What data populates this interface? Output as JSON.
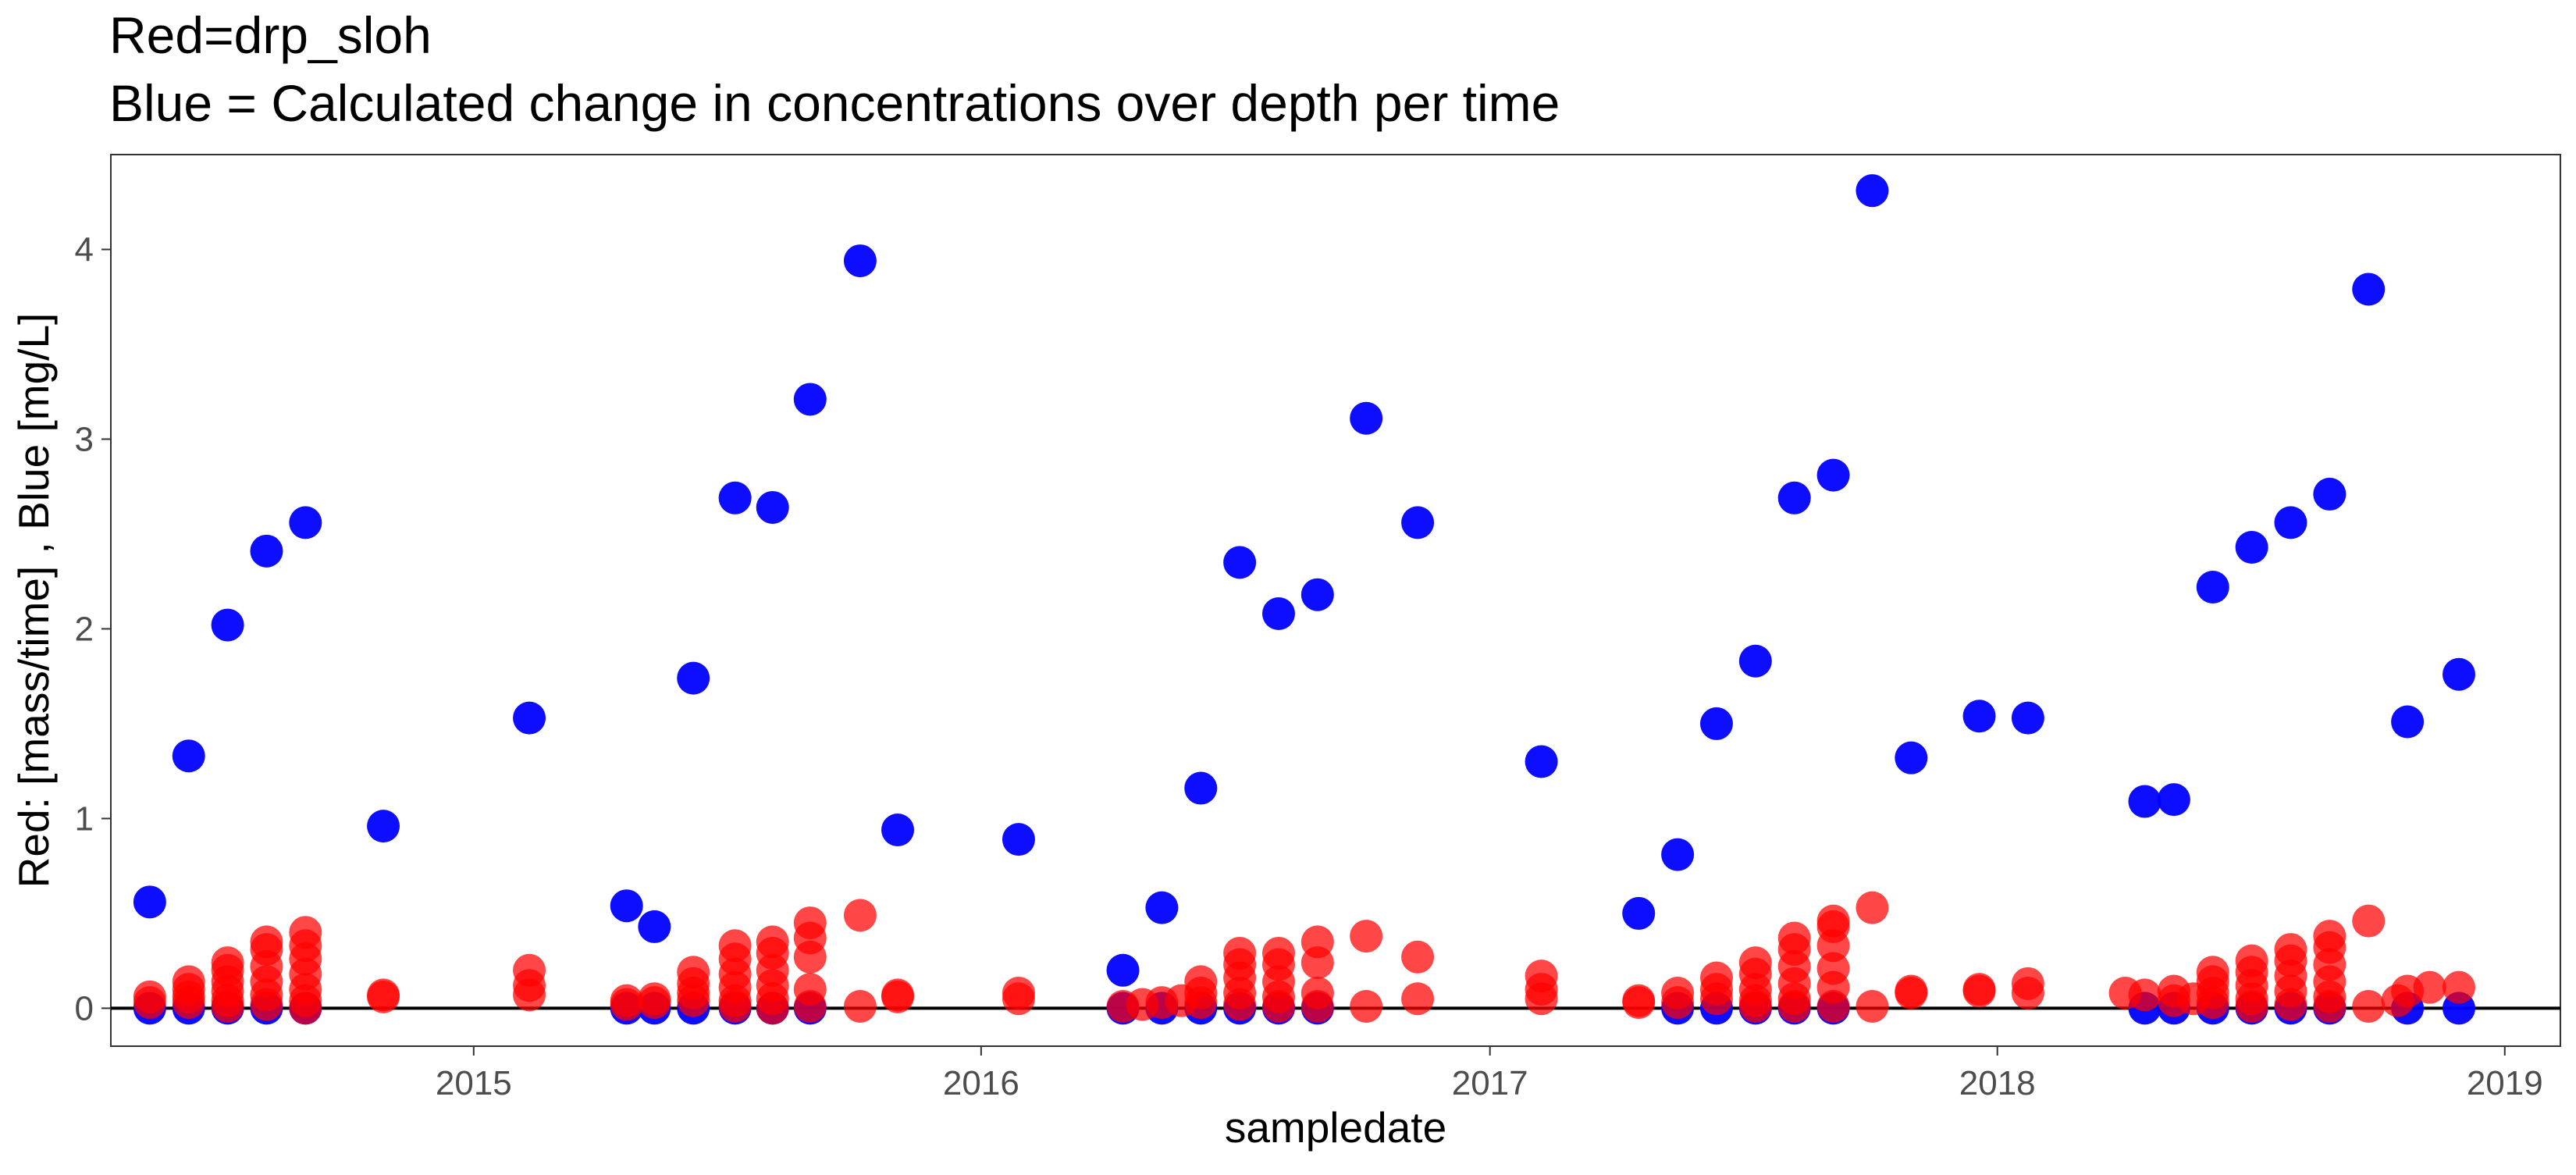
{
  "chart_data": {
    "type": "scatter",
    "title": "Red=drp_sloh",
    "subtitle": "Blue = Calculated change in concentrations over depth per time",
    "xlabel": "sampledate",
    "ylabel": "Red: [mass/time] , Blue [mg/L]",
    "x_ticks": [
      "2015-01-01",
      "2016-01-01",
      "2017-01-01",
      "2018-01-01",
      "2019-01-01"
    ],
    "x_tick_labels": [
      "2015",
      "2016",
      "2017",
      "2018",
      "2019"
    ],
    "y_ticks": [
      0,
      1,
      2,
      3,
      4
    ],
    "y_tick_labels": [
      "0",
      "1",
      "2",
      "3",
      "4"
    ],
    "xlim": [
      "2014-04-15",
      "2019-02-10"
    ],
    "ylim": [
      -0.2,
      4.5
    ],
    "hline_y": 0,
    "grid": false,
    "series": [
      {
        "color": "#0000ff",
        "points": [
          {
            "x": "2014-05-13",
            "y": 0.56
          },
          {
            "x": "2014-06-10",
            "y": 1.33
          },
          {
            "x": "2014-07-08",
            "y": 2.02
          },
          {
            "x": "2014-08-05",
            "y": 2.41
          },
          {
            "x": "2014-09-02",
            "y": 2.56
          },
          {
            "x": "2014-10-28",
            "y": 0.96
          },
          {
            "x": "2015-02-10",
            "y": 1.53
          },
          {
            "x": "2015-04-21",
            "y": 0.54
          },
          {
            "x": "2015-05-11",
            "y": 0.43
          },
          {
            "x": "2015-06-08",
            "y": 1.74
          },
          {
            "x": "2015-07-08",
            "y": 2.69
          },
          {
            "x": "2015-08-04",
            "y": 2.64
          },
          {
            "x": "2015-08-31",
            "y": 3.21
          },
          {
            "x": "2015-10-06",
            "y": 3.94
          },
          {
            "x": "2015-11-02",
            "y": 0.94
          },
          {
            "x": "2016-01-28",
            "y": 0.89
          },
          {
            "x": "2016-04-12",
            "y": 0.2
          },
          {
            "x": "2016-05-10",
            "y": 0.53
          },
          {
            "x": "2016-06-07",
            "y": 1.16
          },
          {
            "x": "2016-07-05",
            "y": 2.35
          },
          {
            "x": "2016-08-02",
            "y": 2.08
          },
          {
            "x": "2016-08-30",
            "y": 2.18
          },
          {
            "x": "2016-10-04",
            "y": 3.11
          },
          {
            "x": "2016-11-10",
            "y": 2.56
          },
          {
            "x": "2017-02-07",
            "y": 1.3
          },
          {
            "x": "2017-04-18",
            "y": 0.5
          },
          {
            "x": "2017-05-16",
            "y": 0.81
          },
          {
            "x": "2017-06-13",
            "y": 1.5
          },
          {
            "x": "2017-07-11",
            "y": 1.83
          },
          {
            "x": "2017-08-08",
            "y": 2.69
          },
          {
            "x": "2017-09-05",
            "y": 2.81
          },
          {
            "x": "2017-10-03",
            "y": 4.31
          },
          {
            "x": "2017-10-31",
            "y": 1.32
          },
          {
            "x": "2017-12-19",
            "y": 1.54
          },
          {
            "x": "2018-01-23",
            "y": 1.53
          },
          {
            "x": "2018-04-17",
            "y": 1.09
          },
          {
            "x": "2018-05-08",
            "y": 1.1
          },
          {
            "x": "2018-06-05",
            "y": 2.22
          },
          {
            "x": "2018-07-03",
            "y": 2.43
          },
          {
            "x": "2018-07-31",
            "y": 2.56
          },
          {
            "x": "2018-08-28",
            "y": 2.71
          },
          {
            "x": "2018-09-25",
            "y": 3.79
          },
          {
            "x": "2018-10-23",
            "y": 1.51
          },
          {
            "x": "2018-11-29",
            "y": 1.76
          },
          {
            "x": "2014-05-13",
            "y": 0.0
          },
          {
            "x": "2014-06-10",
            "y": 0.0
          },
          {
            "x": "2014-07-08",
            "y": 0.0
          },
          {
            "x": "2014-08-05",
            "y": 0.0
          },
          {
            "x": "2014-09-02",
            "y": 0.0
          },
          {
            "x": "2015-04-21",
            "y": 0.0
          },
          {
            "x": "2015-05-11",
            "y": 0.0
          },
          {
            "x": "2015-06-08",
            "y": 0.0
          },
          {
            "x": "2015-07-08",
            "y": 0.0
          },
          {
            "x": "2015-08-04",
            "y": 0.0
          },
          {
            "x": "2015-08-31",
            "y": 0.0
          },
          {
            "x": "2016-04-12",
            "y": 0.0
          },
          {
            "x": "2016-05-10",
            "y": 0.0
          },
          {
            "x": "2016-06-07",
            "y": 0.0
          },
          {
            "x": "2016-07-05",
            "y": 0.0
          },
          {
            "x": "2016-08-02",
            "y": 0.0
          },
          {
            "x": "2016-08-30",
            "y": 0.0
          },
          {
            "x": "2017-05-16",
            "y": 0.0
          },
          {
            "x": "2017-06-13",
            "y": 0.0
          },
          {
            "x": "2017-07-11",
            "y": 0.0
          },
          {
            "x": "2017-08-08",
            "y": 0.0
          },
          {
            "x": "2017-09-05",
            "y": 0.0
          },
          {
            "x": "2018-04-17",
            "y": 0.0
          },
          {
            "x": "2018-05-08",
            "y": 0.0
          },
          {
            "x": "2018-06-05",
            "y": 0.0
          },
          {
            "x": "2018-07-03",
            "y": 0.0
          },
          {
            "x": "2018-07-31",
            "y": 0.0
          },
          {
            "x": "2018-08-28",
            "y": 0.0
          },
          {
            "x": "2018-10-23",
            "y": 0.0
          },
          {
            "x": "2018-11-29",
            "y": 0.0
          }
        ]
      },
      {
        "color": "#ff0000",
        "points": [
          {
            "x": "2014-05-13",
            "y": 0.06
          },
          {
            "x": "2014-05-13",
            "y": 0.03
          },
          {
            "x": "2014-06-10",
            "y": 0.14
          },
          {
            "x": "2014-06-10",
            "y": 0.1
          },
          {
            "x": "2014-06-10",
            "y": 0.06
          },
          {
            "x": "2014-06-10",
            "y": 0.03
          },
          {
            "x": "2014-07-08",
            "y": 0.24
          },
          {
            "x": "2014-07-08",
            "y": 0.2
          },
          {
            "x": "2014-07-08",
            "y": 0.14
          },
          {
            "x": "2014-07-08",
            "y": 0.09
          },
          {
            "x": "2014-07-08",
            "y": 0.04
          },
          {
            "x": "2014-07-08",
            "y": 0.01
          },
          {
            "x": "2014-08-05",
            "y": 0.35
          },
          {
            "x": "2014-08-05",
            "y": 0.31
          },
          {
            "x": "2014-08-05",
            "y": 0.22
          },
          {
            "x": "2014-08-05",
            "y": 0.14
          },
          {
            "x": "2014-08-05",
            "y": 0.07
          },
          {
            "x": "2014-08-05",
            "y": 0.02
          },
          {
            "x": "2014-09-02",
            "y": 0.4
          },
          {
            "x": "2014-09-02",
            "y": 0.33
          },
          {
            "x": "2014-09-02",
            "y": 0.26
          },
          {
            "x": "2014-09-02",
            "y": 0.18
          },
          {
            "x": "2014-09-02",
            "y": 0.1
          },
          {
            "x": "2014-09-02",
            "y": 0.04
          },
          {
            "x": "2014-09-02",
            "y": 0.0
          },
          {
            "x": "2014-10-28",
            "y": 0.07
          },
          {
            "x": "2014-10-28",
            "y": 0.06
          },
          {
            "x": "2015-02-10",
            "y": 0.2
          },
          {
            "x": "2015-02-10",
            "y": 0.12
          },
          {
            "x": "2015-02-10",
            "y": 0.07
          },
          {
            "x": "2015-04-21",
            "y": 0.04
          },
          {
            "x": "2015-04-21",
            "y": 0.02
          },
          {
            "x": "2015-05-11",
            "y": 0.05
          },
          {
            "x": "2015-05-11",
            "y": 0.03
          },
          {
            "x": "2015-06-08",
            "y": 0.19
          },
          {
            "x": "2015-06-08",
            "y": 0.13
          },
          {
            "x": "2015-06-08",
            "y": 0.08
          },
          {
            "x": "2015-06-08",
            "y": 0.04
          },
          {
            "x": "2015-07-08",
            "y": 0.33
          },
          {
            "x": "2015-07-08",
            "y": 0.26
          },
          {
            "x": "2015-07-08",
            "y": 0.18
          },
          {
            "x": "2015-07-08",
            "y": 0.11
          },
          {
            "x": "2015-07-08",
            "y": 0.04
          },
          {
            "x": "2015-07-08",
            "y": 0.01
          },
          {
            "x": "2015-08-04",
            "y": 0.35
          },
          {
            "x": "2015-08-04",
            "y": 0.29
          },
          {
            "x": "2015-08-04",
            "y": 0.2
          },
          {
            "x": "2015-08-04",
            "y": 0.12
          },
          {
            "x": "2015-08-04",
            "y": 0.05
          },
          {
            "x": "2015-08-04",
            "y": 0.0
          },
          {
            "x": "2015-08-31",
            "y": 0.45
          },
          {
            "x": "2015-08-31",
            "y": 0.37
          },
          {
            "x": "2015-08-31",
            "y": 0.27
          },
          {
            "x": "2015-08-31",
            "y": 0.1
          },
          {
            "x": "2015-08-31",
            "y": 0.01
          },
          {
            "x": "2015-10-06",
            "y": 0.49
          },
          {
            "x": "2015-10-06",
            "y": 0.01
          },
          {
            "x": "2015-11-02",
            "y": 0.07
          },
          {
            "x": "2015-11-02",
            "y": 0.06
          },
          {
            "x": "2016-01-28",
            "y": 0.08
          },
          {
            "x": "2016-01-28",
            "y": 0.05
          },
          {
            "x": "2016-04-12",
            "y": 0.01
          },
          {
            "x": "2016-04-26",
            "y": 0.02
          },
          {
            "x": "2016-05-10",
            "y": 0.03
          },
          {
            "x": "2016-05-24",
            "y": 0.04
          },
          {
            "x": "2016-06-07",
            "y": 0.14
          },
          {
            "x": "2016-06-07",
            "y": 0.08
          },
          {
            "x": "2016-06-07",
            "y": 0.03
          },
          {
            "x": "2016-07-05",
            "y": 0.29
          },
          {
            "x": "2016-07-05",
            "y": 0.23
          },
          {
            "x": "2016-07-05",
            "y": 0.16
          },
          {
            "x": "2016-07-05",
            "y": 0.08
          },
          {
            "x": "2016-07-05",
            "y": 0.02
          },
          {
            "x": "2016-08-02",
            "y": 0.29
          },
          {
            "x": "2016-08-02",
            "y": 0.23
          },
          {
            "x": "2016-08-02",
            "y": 0.14
          },
          {
            "x": "2016-08-02",
            "y": 0.06
          },
          {
            "x": "2016-08-02",
            "y": 0.01
          },
          {
            "x": "2016-08-30",
            "y": 0.35
          },
          {
            "x": "2016-08-30",
            "y": 0.24
          },
          {
            "x": "2016-08-30",
            "y": 0.08
          },
          {
            "x": "2016-08-30",
            "y": 0.01
          },
          {
            "x": "2016-10-04",
            "y": 0.38
          },
          {
            "x": "2016-10-04",
            "y": 0.01
          },
          {
            "x": "2016-11-10",
            "y": 0.27
          },
          {
            "x": "2016-11-10",
            "y": 0.05
          },
          {
            "x": "2017-02-07",
            "y": 0.17
          },
          {
            "x": "2017-02-07",
            "y": 0.1
          },
          {
            "x": "2017-02-07",
            "y": 0.05
          },
          {
            "x": "2017-04-18",
            "y": 0.04
          },
          {
            "x": "2017-04-18",
            "y": 0.03
          },
          {
            "x": "2017-05-16",
            "y": 0.08
          },
          {
            "x": "2017-05-16",
            "y": 0.03
          },
          {
            "x": "2017-06-13",
            "y": 0.16
          },
          {
            "x": "2017-06-13",
            "y": 0.1
          },
          {
            "x": "2017-06-13",
            "y": 0.05
          },
          {
            "x": "2017-07-11",
            "y": 0.24
          },
          {
            "x": "2017-07-11",
            "y": 0.18
          },
          {
            "x": "2017-07-11",
            "y": 0.1
          },
          {
            "x": "2017-07-11",
            "y": 0.04
          },
          {
            "x": "2017-07-11",
            "y": 0.01
          },
          {
            "x": "2017-08-08",
            "y": 0.37
          },
          {
            "x": "2017-08-08",
            "y": 0.31
          },
          {
            "x": "2017-08-08",
            "y": 0.22
          },
          {
            "x": "2017-08-08",
            "y": 0.13
          },
          {
            "x": "2017-08-08",
            "y": 0.05
          },
          {
            "x": "2017-08-08",
            "y": 0.01
          },
          {
            "x": "2017-09-05",
            "y": 0.46
          },
          {
            "x": "2017-09-05",
            "y": 0.43
          },
          {
            "x": "2017-09-05",
            "y": 0.33
          },
          {
            "x": "2017-09-05",
            "y": 0.21
          },
          {
            "x": "2017-09-05",
            "y": 0.11
          },
          {
            "x": "2017-09-05",
            "y": 0.01
          },
          {
            "x": "2017-10-03",
            "y": 0.53
          },
          {
            "x": "2017-10-03",
            "y": 0.01
          },
          {
            "x": "2017-10-31",
            "y": 0.09
          },
          {
            "x": "2017-10-31",
            "y": 0.08
          },
          {
            "x": "2017-12-19",
            "y": 0.1
          },
          {
            "x": "2017-12-19",
            "y": 0.09
          },
          {
            "x": "2018-01-23",
            "y": 0.13
          },
          {
            "x": "2018-01-23",
            "y": 0.08
          },
          {
            "x": "2018-04-03",
            "y": 0.08
          },
          {
            "x": "2018-04-17",
            "y": 0.07
          },
          {
            "x": "2018-05-08",
            "y": 0.09
          },
          {
            "x": "2018-05-08",
            "y": 0.04
          },
          {
            "x": "2018-05-22",
            "y": 0.05
          },
          {
            "x": "2018-06-05",
            "y": 0.19
          },
          {
            "x": "2018-06-05",
            "y": 0.14
          },
          {
            "x": "2018-06-05",
            "y": 0.08
          },
          {
            "x": "2018-06-05",
            "y": 0.03
          },
          {
            "x": "2018-07-03",
            "y": 0.25
          },
          {
            "x": "2018-07-03",
            "y": 0.19
          },
          {
            "x": "2018-07-03",
            "y": 0.12
          },
          {
            "x": "2018-07-03",
            "y": 0.05
          },
          {
            "x": "2018-07-03",
            "y": 0.01
          },
          {
            "x": "2018-07-31",
            "y": 0.31
          },
          {
            "x": "2018-07-31",
            "y": 0.25
          },
          {
            "x": "2018-07-31",
            "y": 0.17
          },
          {
            "x": "2018-07-31",
            "y": 0.09
          },
          {
            "x": "2018-07-31",
            "y": 0.02
          },
          {
            "x": "2018-08-28",
            "y": 0.38
          },
          {
            "x": "2018-08-28",
            "y": 0.32
          },
          {
            "x": "2018-08-28",
            "y": 0.23
          },
          {
            "x": "2018-08-28",
            "y": 0.14
          },
          {
            "x": "2018-08-28",
            "y": 0.06
          },
          {
            "x": "2018-08-28",
            "y": 0.01
          },
          {
            "x": "2018-09-25",
            "y": 0.46
          },
          {
            "x": "2018-09-25",
            "y": 0.01
          },
          {
            "x": "2018-10-16",
            "y": 0.04
          },
          {
            "x": "2018-10-23",
            "y": 0.09
          },
          {
            "x": "2018-11-08",
            "y": 0.11
          },
          {
            "x": "2018-11-29",
            "y": 0.11
          }
        ]
      }
    ]
  }
}
